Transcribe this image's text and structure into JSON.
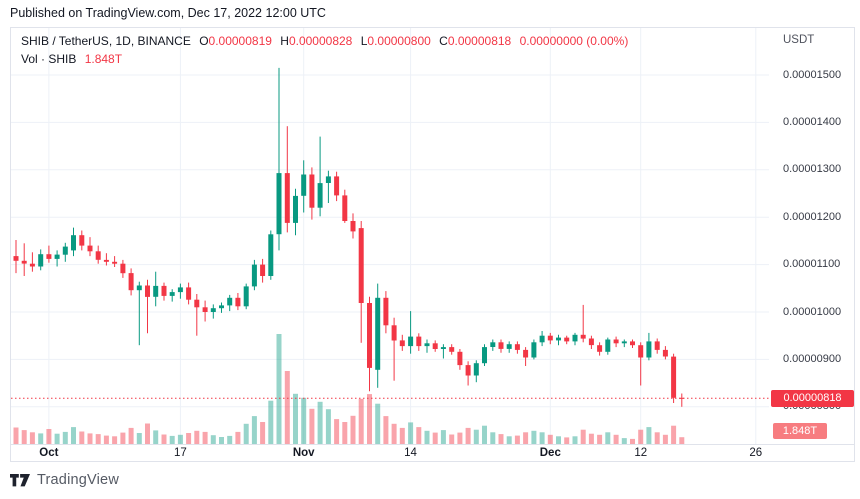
{
  "published_bar": {
    "text": "Published on TradingView.com, Dec 17, 2022 12:00 UTC"
  },
  "header": {
    "symbol": "SHIB / TetherUS, 1D, BINANCE",
    "ohlc": [
      {
        "label": "O",
        "value": "0.00000819"
      },
      {
        "label": "H",
        "value": "0.00000828"
      },
      {
        "label": "L",
        "value": "0.00000800"
      },
      {
        "label": "C",
        "value": "0.00000818"
      }
    ],
    "change": "0.00000000 (0.00%)",
    "vol_label": "Vol · SHIB",
    "vol_value": "1.848T",
    "currency": "USDT"
  },
  "price_line": {
    "label": "0.00000818"
  },
  "volume_badge": {
    "label": "1.848T"
  },
  "footer": {
    "brand": "TradingView"
  },
  "colors": {
    "up": "#089981",
    "down": "#f23645",
    "vol_up": "rgba(8,153,129,0.42)",
    "vol_down": "rgba(242,54,69,0.45)",
    "grid": "#edf1f7",
    "price_line": "#f23645",
    "price_badge_bg": "#f23645",
    "vol_badge_bg": "#f77c80",
    "axis_text": "#363a45"
  },
  "axes": {
    "price_ticks": [
      {
        "label": "0.00001500",
        "value": 15.0
      },
      {
        "label": "0.00001400",
        "value": 14.0
      },
      {
        "label": "0.00001300",
        "value": 13.0
      },
      {
        "label": "0.00001200",
        "value": 12.0
      },
      {
        "label": "0.00001100",
        "value": 11.0
      },
      {
        "label": "0.00001000",
        "value": 10.0
      },
      {
        "label": "0.00000900",
        "value": 9.0
      },
      {
        "label": "0.00000800",
        "value": 8.0
      }
    ],
    "time_ticks": [
      {
        "label": "Oct",
        "i": 4,
        "major": true
      },
      {
        "label": "17",
        "i": 20,
        "major": false
      },
      {
        "label": "Nov",
        "i": 35,
        "major": true
      },
      {
        "label": "14",
        "i": 48,
        "major": false
      },
      {
        "label": "Dec",
        "i": 65,
        "major": true
      },
      {
        "label": "12",
        "i": 76,
        "major": false
      },
      {
        "label": "26",
        "i": 90,
        "major": false
      }
    ]
  },
  "chart_data": {
    "type": "candlestick_with_volume",
    "title": "SHIB / TetherUS, 1D, BINANCE",
    "price_unit": "USDT, values below are in 1e-6 USDT (micro-USDT)",
    "volume_unit": "T (trillions of SHIB)",
    "ylim_micro_usdt": [
      7.2,
      16.0
    ],
    "last_price_micro": 8.18,
    "last_price_label": "0.00000818",
    "last_volume_label": "1.848T",
    "grid": true,
    "columns": [
      "date",
      "open",
      "high",
      "low",
      "close",
      "volume_T"
    ],
    "candles": [
      [
        "Sep 27",
        11.18,
        11.52,
        10.82,
        11.08,
        4.5
      ],
      [
        "Sep 28",
        11.08,
        11.45,
        10.76,
        11.02,
        3.8
      ],
      [
        "Sep 29",
        11.02,
        11.26,
        10.85,
        10.96,
        3.2
      ],
      [
        "Sep 30",
        10.96,
        11.32,
        10.88,
        11.22,
        2.9
      ],
      [
        "Oct 1",
        11.22,
        11.4,
        11.04,
        11.12,
        4.1
      ],
      [
        "Oct 2",
        11.12,
        11.3,
        10.96,
        11.21,
        2.8
      ],
      [
        "Oct 3",
        11.21,
        11.46,
        11.06,
        11.38,
        3.3
      ],
      [
        "Oct 4",
        11.3,
        11.78,
        11.18,
        11.62,
        4.6
      ],
      [
        "Oct 5",
        11.62,
        11.72,
        11.3,
        11.4,
        3.4
      ],
      [
        "Oct 6",
        11.4,
        11.58,
        11.18,
        11.28,
        2.9
      ],
      [
        "Oct 7",
        11.28,
        11.4,
        11.02,
        11.1,
        2.7
      ],
      [
        "Oct 8",
        11.1,
        11.24,
        10.98,
        11.06,
        2.3
      ],
      [
        "Oct 9",
        11.06,
        11.18,
        10.95,
        11.02,
        2.1
      ],
      [
        "Oct 10",
        11.02,
        11.1,
        10.72,
        10.82,
        3.1
      ],
      [
        "Oct 11",
        10.82,
        10.92,
        10.35,
        10.46,
        4.4
      ],
      [
        "Oct 12",
        10.46,
        10.64,
        9.3,
        10.56,
        3.0
      ],
      [
        "Oct 13",
        10.56,
        10.68,
        9.55,
        10.32,
        5.6
      ],
      [
        "Oct 14",
        10.32,
        10.85,
        10.12,
        10.55,
        3.7
      ],
      [
        "Oct 15",
        10.55,
        10.62,
        10.24,
        10.34,
        2.6
      ],
      [
        "Oct 16",
        10.34,
        10.48,
        10.22,
        10.42,
        2.2
      ],
      [
        "Oct 17",
        10.42,
        10.6,
        10.28,
        10.52,
        2.5
      ],
      [
        "Oct 18",
        10.52,
        10.62,
        10.16,
        10.26,
        3.0
      ],
      [
        "Oct 19",
        10.26,
        10.38,
        9.5,
        10.1,
        3.6
      ],
      [
        "Oct 20",
        10.1,
        10.24,
        9.8,
        10.0,
        3.3
      ],
      [
        "Oct 21",
        10.0,
        10.16,
        9.86,
        10.08,
        2.4
      ],
      [
        "Oct 22",
        10.08,
        10.2,
        9.98,
        10.14,
        1.9
      ],
      [
        "Oct 23",
        10.14,
        10.36,
        10.02,
        10.3,
        2.2
      ],
      [
        "Oct 24",
        10.3,
        10.4,
        10.04,
        10.12,
        3.3
      ],
      [
        "Oct 25",
        10.12,
        10.6,
        10.06,
        10.54,
        5.5
      ],
      [
        "Oct 26",
        10.54,
        11.1,
        10.46,
        11.0,
        7.6
      ],
      [
        "Oct 27",
        11.0,
        11.12,
        10.62,
        10.76,
        6.0
      ],
      [
        "Oct 28",
        10.76,
        11.72,
        10.68,
        11.64,
        11.8
      ],
      [
        "Oct 29",
        11.64,
        15.15,
        11.3,
        12.93,
        30.0
      ],
      [
        "Oct 30",
        12.93,
        13.92,
        11.68,
        11.88,
        19.9
      ],
      [
        "Oct 31",
        11.88,
        12.6,
        11.62,
        12.45,
        13.7
      ],
      [
        "Nov 1",
        12.45,
        13.2,
        12.1,
        12.9,
        12.6
      ],
      [
        "Nov 2",
        12.9,
        13.05,
        11.95,
        12.2,
        9.6
      ],
      [
        "Nov 3",
        12.2,
        13.7,
        12.02,
        12.72,
        11.5
      ],
      [
        "Nov 4",
        12.72,
        12.98,
        12.3,
        12.86,
        9.5
      ],
      [
        "Nov 5",
        12.86,
        12.96,
        12.34,
        12.46,
        6.8
      ],
      [
        "Nov 6",
        12.46,
        12.58,
        11.88,
        11.92,
        6.0
      ],
      [
        "Nov 7",
        11.92,
        12.08,
        11.55,
        11.7,
        7.7
      ],
      [
        "Nov 8",
        11.77,
        11.92,
        9.35,
        10.19,
        12.3
      ],
      [
        "Nov 9",
        10.19,
        10.32,
        8.33,
        8.82,
        13.6
      ],
      [
        "Nov 10",
        8.78,
        10.6,
        8.4,
        10.3,
        11.0
      ],
      [
        "Nov 11",
        10.3,
        10.44,
        9.55,
        9.72,
        7.6
      ],
      [
        "Nov 12",
        9.72,
        9.88,
        8.55,
        9.4,
        5.5
      ],
      [
        "Nov 13",
        9.4,
        9.52,
        9.18,
        9.28,
        4.4
      ],
      [
        "Nov 14",
        9.28,
        10.02,
        9.12,
        9.48,
        5.9
      ],
      [
        "Nov 15",
        9.48,
        9.55,
        9.18,
        9.28,
        4.6
      ],
      [
        "Nov 16",
        9.28,
        9.42,
        9.14,
        9.34,
        3.6
      ],
      [
        "Nov 17",
        9.34,
        9.4,
        9.16,
        9.22,
        3.1
      ],
      [
        "Nov 18",
        9.22,
        9.32,
        9.02,
        9.26,
        3.8
      ],
      [
        "Nov 19",
        9.26,
        9.32,
        9.1,
        9.16,
        2.6
      ],
      [
        "Nov 20",
        9.16,
        9.22,
        8.78,
        8.88,
        3.1
      ],
      [
        "Nov 21",
        8.88,
        8.96,
        8.45,
        8.66,
        4.4
      ],
      [
        "Nov 22",
        8.66,
        8.98,
        8.52,
        8.92,
        3.9
      ],
      [
        "Nov 23",
        8.92,
        9.32,
        8.86,
        9.26,
        5.0
      ],
      [
        "Nov 24",
        9.26,
        9.42,
        9.18,
        9.36,
        3.2
      ],
      [
        "Nov 25",
        9.36,
        9.42,
        9.14,
        9.22,
        2.7
      ],
      [
        "Nov 26",
        9.22,
        9.38,
        9.14,
        9.32,
        2.1
      ],
      [
        "Nov 27",
        9.32,
        9.38,
        9.12,
        9.2,
        2.3
      ],
      [
        "Nov 28",
        9.2,
        9.26,
        8.86,
        9.04,
        3.2
      ],
      [
        "Nov 29",
        9.04,
        9.42,
        9.0,
        9.36,
        3.6
      ],
      [
        "Nov 30",
        9.36,
        9.6,
        9.28,
        9.5,
        3.2
      ],
      [
        "Dec 1",
        9.5,
        9.56,
        9.32,
        9.4,
        2.5
      ],
      [
        "Dec 2",
        9.4,
        9.52,
        9.3,
        9.46,
        2.1
      ],
      [
        "Dec 3",
        9.46,
        9.5,
        9.32,
        9.38,
        1.8
      ],
      [
        "Dec 4",
        9.38,
        9.56,
        9.3,
        9.52,
        2.1
      ],
      [
        "Dec 5",
        9.52,
        10.15,
        9.36,
        9.44,
        3.9
      ],
      [
        "Dec 6",
        9.44,
        9.5,
        9.22,
        9.3,
        2.8
      ],
      [
        "Dec 7",
        9.3,
        9.36,
        9.08,
        9.16,
        2.5
      ],
      [
        "Dec 8",
        9.16,
        9.46,
        9.1,
        9.42,
        3.2
      ],
      [
        "Dec 9",
        9.42,
        9.48,
        9.26,
        9.34,
        2.5
      ],
      [
        "Dec 10",
        9.34,
        9.42,
        9.26,
        9.38,
        1.6
      ],
      [
        "Dec 11",
        9.38,
        9.42,
        9.24,
        9.3,
        1.4
      ],
      [
        "Dec 12",
        9.3,
        9.36,
        8.45,
        9.04,
        3.9
      ],
      [
        "Dec 13",
        9.04,
        9.56,
        8.98,
        9.38,
        4.6
      ],
      [
        "Dec 14",
        9.38,
        9.44,
        9.12,
        9.2,
        3.2
      ],
      [
        "Dec 15",
        9.2,
        9.28,
        9.0,
        9.06,
        2.5
      ],
      [
        "Dec 16",
        9.06,
        9.12,
        8.08,
        8.19,
        5.0
      ],
      [
        "Dec 17",
        8.19,
        8.28,
        8.0,
        8.18,
        1.848
      ]
    ]
  }
}
